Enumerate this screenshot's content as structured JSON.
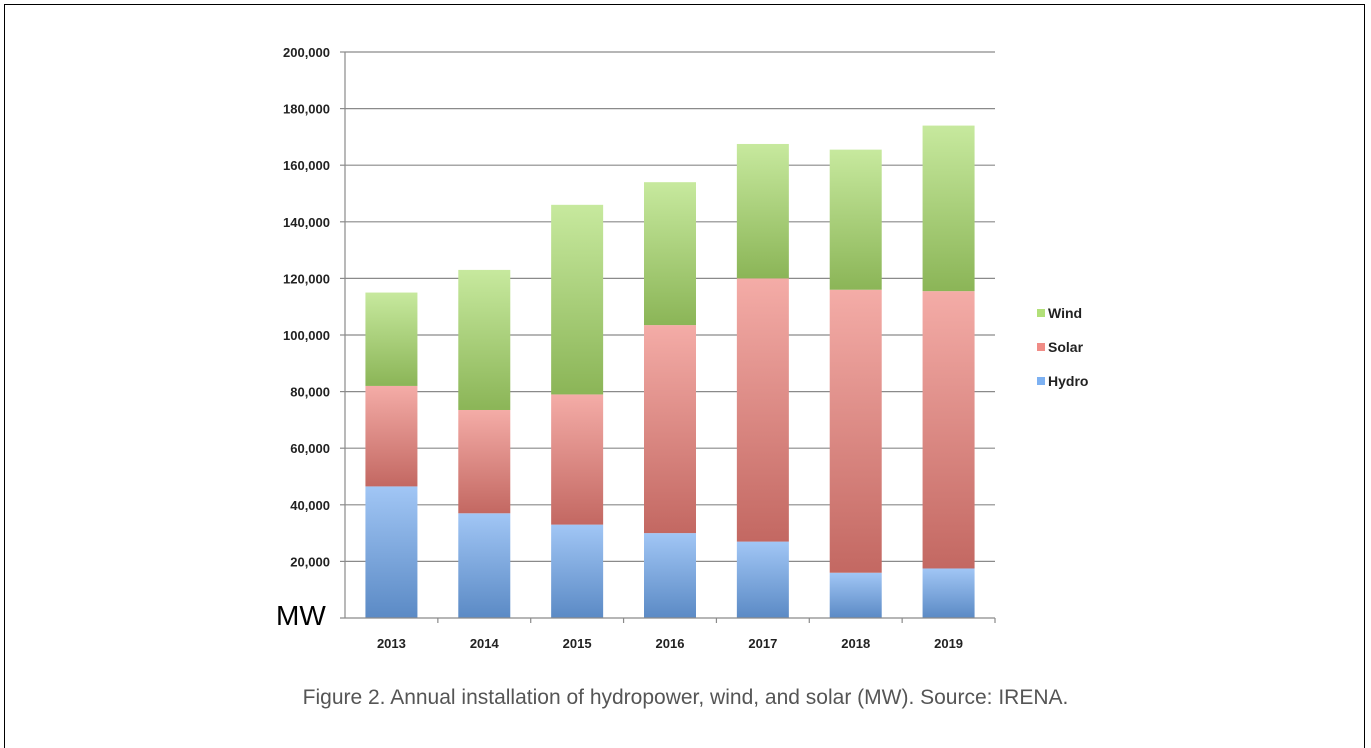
{
  "caption": "Figure 2. Annual installation of hydropower, wind, and solar (MW). Source: IRENA.",
  "unit_label": "MW",
  "chart_data": {
    "type": "bar",
    "stacked": true,
    "categories": [
      "2013",
      "2014",
      "2015",
      "2016",
      "2017",
      "2018",
      "2019"
    ],
    "series": [
      {
        "name": "Hydro",
        "color": "#6fa8f0",
        "values": [
          46500,
          37000,
          33000,
          30000,
          27000,
          16000,
          17500
        ]
      },
      {
        "name": "Solar",
        "color": "#ee7f78",
        "values": [
          35500,
          36500,
          46000,
          73500,
          93000,
          100000,
          98000
        ]
      },
      {
        "name": "Wind",
        "color": "#a9dd6a",
        "values": [
          33000,
          49500,
          67000,
          50500,
          47500,
          49500,
          58500
        ]
      }
    ],
    "ylim": [
      0,
      200000
    ],
    "yticks": [
      "20,000",
      "40,000",
      "60,000",
      "80,000",
      "100,000",
      "120,000",
      "140,000",
      "160,000",
      "180,000",
      "200,000"
    ],
    "ytick_values": [
      20000,
      40000,
      60000,
      80000,
      100000,
      120000,
      140000,
      160000,
      180000,
      200000
    ],
    "legend": [
      "Wind",
      "Solar",
      "Hydro"
    ],
    "legend_position": "right",
    "grid": true
  }
}
